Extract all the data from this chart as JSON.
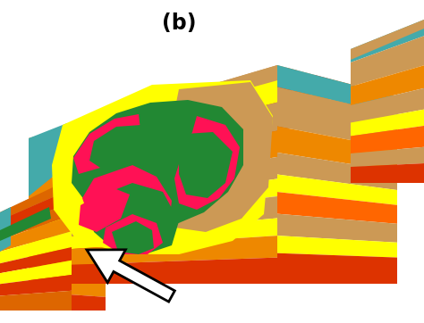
{
  "title": "(b)",
  "background_color": "#ffffff",
  "colors": {
    "orange_dark": "#dd3300",
    "orange_mid": "#dd6600",
    "orange_light": "#ee8800",
    "tan": "#cc9955",
    "yellow": "#ffff00",
    "green_dark": "#228833",
    "green_light": "#44bb44",
    "red": "#ff1155",
    "cyan": "#44aaaa",
    "orange_bright": "#ff6600",
    "dark_orange2": "#cc4400"
  },
  "figsize": [
    4.74,
    3.62
  ],
  "dpi": 100
}
